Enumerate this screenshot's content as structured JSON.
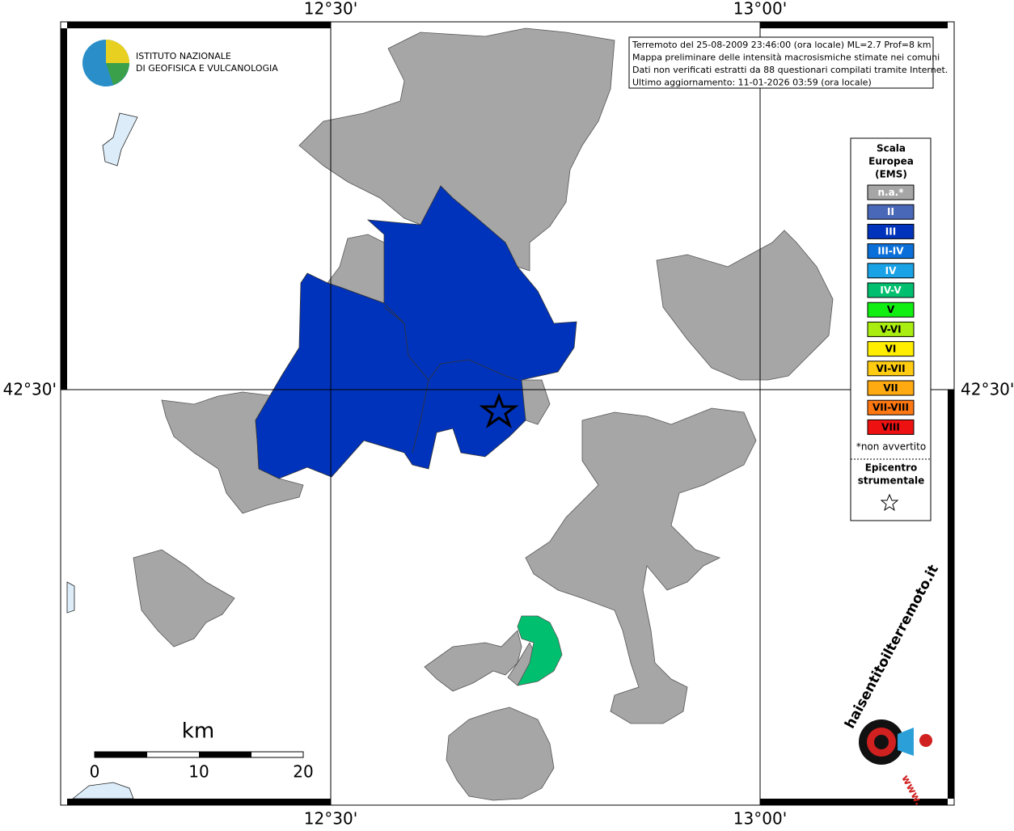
{
  "coordinates": {
    "top_left": "12°30'",
    "top_right": "13°00'",
    "bottom_left": "12°30'",
    "bottom_right": "13°00'",
    "left": "42°30'",
    "right": "42°30'"
  },
  "institute": {
    "line1": "ISTITUTO NAZIONALE",
    "line2": "DI GEOFISICA E VULCANOLOGIA"
  },
  "info": [
    "Terremoto del 25-08-2009 23:46:00 (ora locale) ML=2.7 Prof=8 km",
    "Mappa preliminare delle intensità macrosismiche stimate nei comuni",
    "Dati non verificati estratti da 88 questionari compilati tramite Internet.",
    "Ultimo aggiornamento: 11-01-2026 03:59 (ora locale)"
  ],
  "legend": {
    "title": [
      "Scala",
      "Europea",
      "(EMS)"
    ],
    "items": [
      {
        "label": "n.a.*",
        "color": "#a6a6a6"
      },
      {
        "label": "II",
        "color": "#4a68b8"
      },
      {
        "label": "III",
        "color": "#0033bb"
      },
      {
        "label": "III-IV",
        "color": "#0a6fd8"
      },
      {
        "label": "IV",
        "color": "#19a3e6"
      },
      {
        "label": "IV-V",
        "color": "#00c070"
      },
      {
        "label": "V",
        "color": "#11ee11"
      },
      {
        "label": "V-VI",
        "color": "#aaee11"
      },
      {
        "label": "VI",
        "color": "#ffee00"
      },
      {
        "label": "VI-VII",
        "color": "#ffcc11"
      },
      {
        "label": "VII",
        "color": "#ffaa11"
      },
      {
        "label": "VII-VIII",
        "color": "#ff7711"
      },
      {
        "label": "VIII",
        "color": "#ee1111"
      }
    ],
    "note": "*non avvertito",
    "epicenter": [
      "Epicentro",
      "strumentale"
    ]
  },
  "scale_bar": {
    "unit": "km",
    "labels": [
      "0",
      "10",
      "20"
    ]
  },
  "logo": {
    "text": "haisentitoilterremoto.it",
    "prefix": "www."
  }
}
